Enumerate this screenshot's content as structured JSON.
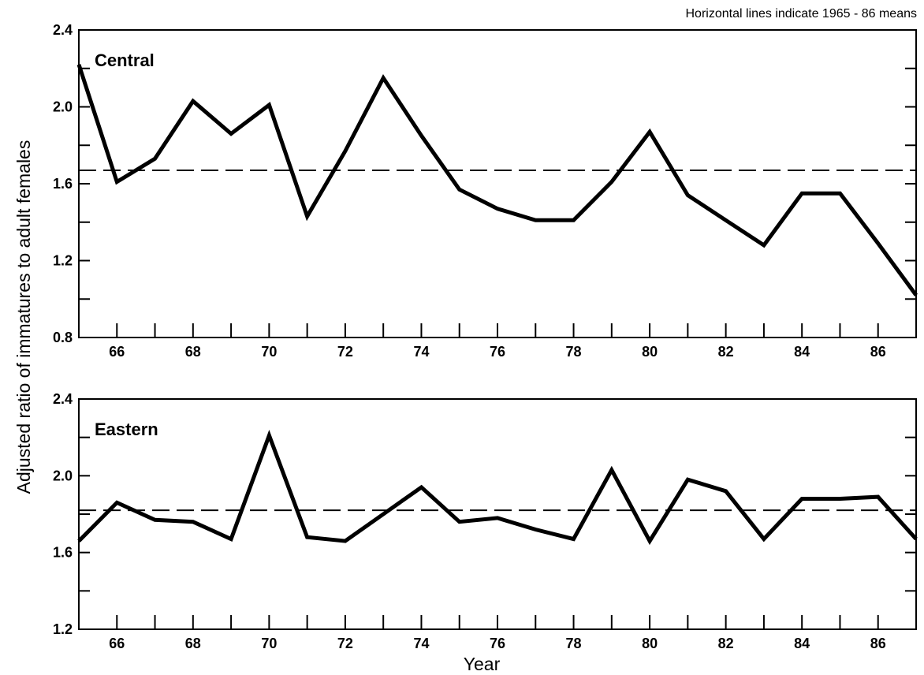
{
  "note": "Horizontal lines indicate 1965 - 86 means",
  "ylabel": "Adjusted ratio of immatures to adult females",
  "xlabel": "Year",
  "chart_data": [
    {
      "type": "line",
      "panel_label": "Central",
      "x": [
        1965,
        1966,
        1967,
        1968,
        1969,
        1970,
        1971,
        1972,
        1973,
        1974,
        1975,
        1976,
        1977,
        1978,
        1979,
        1980,
        1981,
        1982,
        1983,
        1984,
        1985,
        1986,
        1987
      ],
      "series": [
        {
          "values": [
            2.22,
            1.61,
            1.73,
            2.03,
            1.86,
            2.01,
            1.43,
            1.77,
            2.15,
            1.85,
            1.57,
            1.47,
            1.41,
            1.41,
            1.61,
            1.87,
            1.54,
            1.41,
            1.28,
            1.55,
            1.55,
            1.29,
            1.02
          ]
        }
      ],
      "mean": 1.67,
      "xlim": [
        1965,
        1987
      ],
      "ylim": [
        0.8,
        2.4
      ],
      "yticks": [
        "0.8",
        "1.2",
        "1.6",
        "2.0",
        "2.4"
      ],
      "xticks": [
        "66",
        "68",
        "70",
        "72",
        "74",
        "76",
        "78",
        "80",
        "82",
        "84",
        "86"
      ]
    },
    {
      "type": "line",
      "panel_label": "Eastern",
      "x": [
        1965,
        1966,
        1967,
        1968,
        1969,
        1970,
        1971,
        1972,
        1973,
        1974,
        1975,
        1976,
        1977,
        1978,
        1979,
        1980,
        1981,
        1982,
        1983,
        1984,
        1985,
        1986,
        1987
      ],
      "series": [
        {
          "values": [
            1.66,
            1.86,
            1.77,
            1.76,
            1.67,
            2.21,
            1.68,
            1.66,
            1.8,
            1.94,
            1.76,
            1.78,
            1.72,
            1.67,
            2.03,
            1.66,
            1.98,
            1.92,
            1.67,
            1.88,
            1.88,
            1.89,
            1.67
          ]
        }
      ],
      "mean": 1.82,
      "xlim": [
        1965,
        1987
      ],
      "ylim": [
        1.2,
        2.4
      ],
      "yticks": [
        "1.2",
        "1.6",
        "2.0",
        "2.4"
      ],
      "xticks": [
        "66",
        "68",
        "70",
        "72",
        "74",
        "76",
        "78",
        "80",
        "82",
        "84",
        "86"
      ]
    }
  ]
}
